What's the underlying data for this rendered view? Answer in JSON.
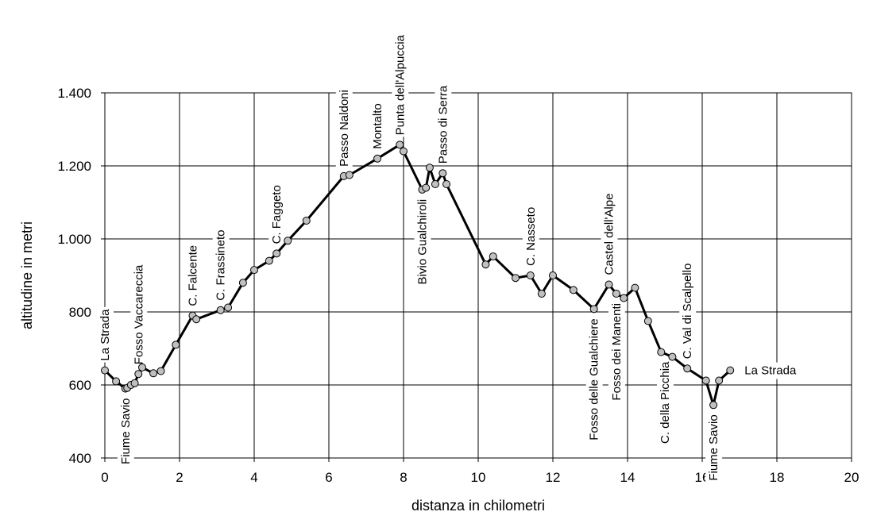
{
  "chart_data": {
    "type": "line",
    "title": "",
    "xlabel": "distanza in chilometri",
    "ylabel": "altitudine  in metri",
    "xlim": [
      0,
      20
    ],
    "ylim": [
      400,
      1400
    ],
    "grid": true,
    "legend": "none",
    "x_ticks": [
      0,
      2,
      4,
      6,
      8,
      10,
      12,
      14,
      16,
      18,
      20
    ],
    "x_tick_labels": [
      "0",
      "2",
      "4",
      "6",
      "8",
      "10",
      "12",
      "14",
      "16",
      "18",
      "20"
    ],
    "y_ticks": [
      400,
      600,
      800,
      1000,
      1200,
      1400
    ],
    "y_tick_labels": [
      "400",
      "600",
      "800",
      "1.000",
      "1.200",
      "1.400"
    ],
    "line_color": "#000000",
    "marker_color": "#c0c0c0",
    "series": [
      {
        "x": [
          0.0,
          0.3,
          0.55,
          0.6,
          0.7,
          0.8,
          0.9,
          1.0,
          1.3,
          1.5,
          1.9,
          2.35,
          2.45,
          3.1,
          3.3,
          3.7,
          4.0,
          4.4,
          4.6,
          4.9,
          5.4,
          6.4,
          6.55,
          7.3,
          7.9,
          8.0,
          8.5,
          8.6,
          8.7,
          8.85,
          9.05,
          9.15,
          10.2,
          10.4,
          11.0,
          11.4,
          11.7,
          12.0,
          12.55,
          13.1,
          13.5,
          13.7,
          13.9,
          14.2,
          14.55,
          14.9,
          15.2,
          15.6,
          16.1,
          16.3,
          16.45,
          16.75
        ],
        "y": [
          640,
          610,
          590,
          592,
          600,
          605,
          630,
          648,
          632,
          638,
          710,
          790,
          780,
          805,
          812,
          880,
          915,
          940,
          960,
          995,
          1050,
          1172,
          1175,
          1220,
          1258,
          1240,
          1135,
          1140,
          1195,
          1150,
          1180,
          1150,
          930,
          952,
          893,
          900,
          850,
          900,
          860,
          808,
          875,
          850,
          838,
          866,
          775,
          690,
          677,
          645,
          612,
          545,
          612,
          640
        ]
      }
    ],
    "annotations": [
      {
        "text": "La Strada",
        "x": 0.0,
        "y": 640,
        "pos": "above"
      },
      {
        "text": "Fiume Savio",
        "x": 0.55,
        "y": 590,
        "pos": "below"
      },
      {
        "text": "Fosso Vaccareccia",
        "x": 0.9,
        "y": 630,
        "pos": "above"
      },
      {
        "text": "C. Falcente",
        "x": 2.35,
        "y": 790,
        "pos": "above"
      },
      {
        "text": "C. Frassineto",
        "x": 3.1,
        "y": 805,
        "pos": "above"
      },
      {
        "text": "C. Faggeto",
        "x": 4.6,
        "y": 960,
        "pos": "above"
      },
      {
        "text": "Passo Naldoni",
        "x": 6.4,
        "y": 1172,
        "pos": "above"
      },
      {
        "text": "Montalto",
        "x": 7.3,
        "y": 1220,
        "pos": "above"
      },
      {
        "text": "Punta dell'Alpuccia",
        "x": 7.9,
        "y": 1258,
        "pos": "above"
      },
      {
        "text": "Passo di Serra",
        "x": 9.05,
        "y": 1180,
        "pos": "above"
      },
      {
        "text": "Bivio Gualchiroli",
        "x": 8.5,
        "y": 1135,
        "pos": "below"
      },
      {
        "text": "C. Nasseto",
        "x": 11.4,
        "y": 900,
        "pos": "above"
      },
      {
        "text": "Castel dell'Alpe",
        "x": 13.5,
        "y": 875,
        "pos": "above"
      },
      {
        "text": "Fosso delle Gualchiere",
        "x": 13.1,
        "y": 808,
        "pos": "below"
      },
      {
        "text": "Fosso dei Manenti",
        "x": 13.7,
        "y": 850,
        "pos": "below"
      },
      {
        "text": "C. della Picchia",
        "x": 15.0,
        "y": 690,
        "pos": "below"
      },
      {
        "text": "C. Val di Scalpello",
        "x": 15.6,
        "y": 645,
        "pos": "above"
      },
      {
        "text": "Fiume Savio",
        "x": 16.3,
        "y": 545,
        "pos": "below"
      },
      {
        "text": "La Strada",
        "x": 16.75,
        "y": 640,
        "pos": "right"
      }
    ]
  }
}
